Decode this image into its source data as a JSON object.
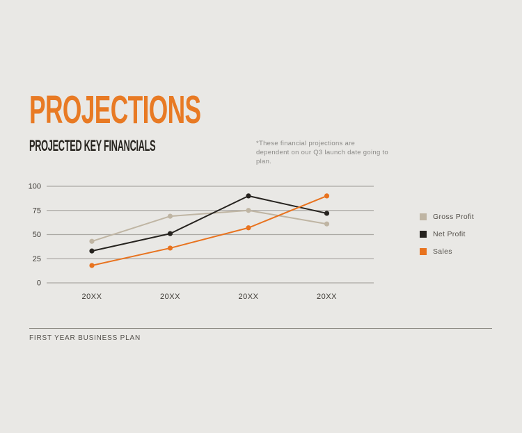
{
  "slide": {
    "title": "PROJECTIONS",
    "subtitle": "PROJECTED KEY FINANCIALS",
    "note": "*These financial projections are dependent on our Q3 launch date going to plan.",
    "footer": "FIRST YEAR BUSINESS PLAN"
  },
  "colors": {
    "background": "#E9E8E5",
    "accent_orange": "#E87A24",
    "text_dark": "#27241F",
    "text_muted": "#8B8A87",
    "gridline": "#ABA9A4",
    "axis_label": "#3C3934",
    "footer_rule": "#8A8881"
  },
  "chart_data": {
    "type": "line",
    "title": "",
    "xlabel": "",
    "ylabel": "",
    "categories": [
      "20XX",
      "20XX",
      "20XX",
      "20XX"
    ],
    "series": [
      {
        "name": "Gross Profit",
        "color": "#BFB5A3",
        "values": [
          43,
          69,
          75,
          61
        ]
      },
      {
        "name": "Net Profit",
        "color": "#26231F",
        "values": [
          33,
          51,
          90,
          72
        ]
      },
      {
        "name": "Sales",
        "color": "#E8731F",
        "values": [
          18,
          36,
          57,
          90
        ]
      }
    ],
    "yticks": [
      0,
      25,
      50,
      75,
      100
    ],
    "ylim": [
      0,
      100
    ],
    "grid": "horizontal",
    "legend_position": "right"
  }
}
